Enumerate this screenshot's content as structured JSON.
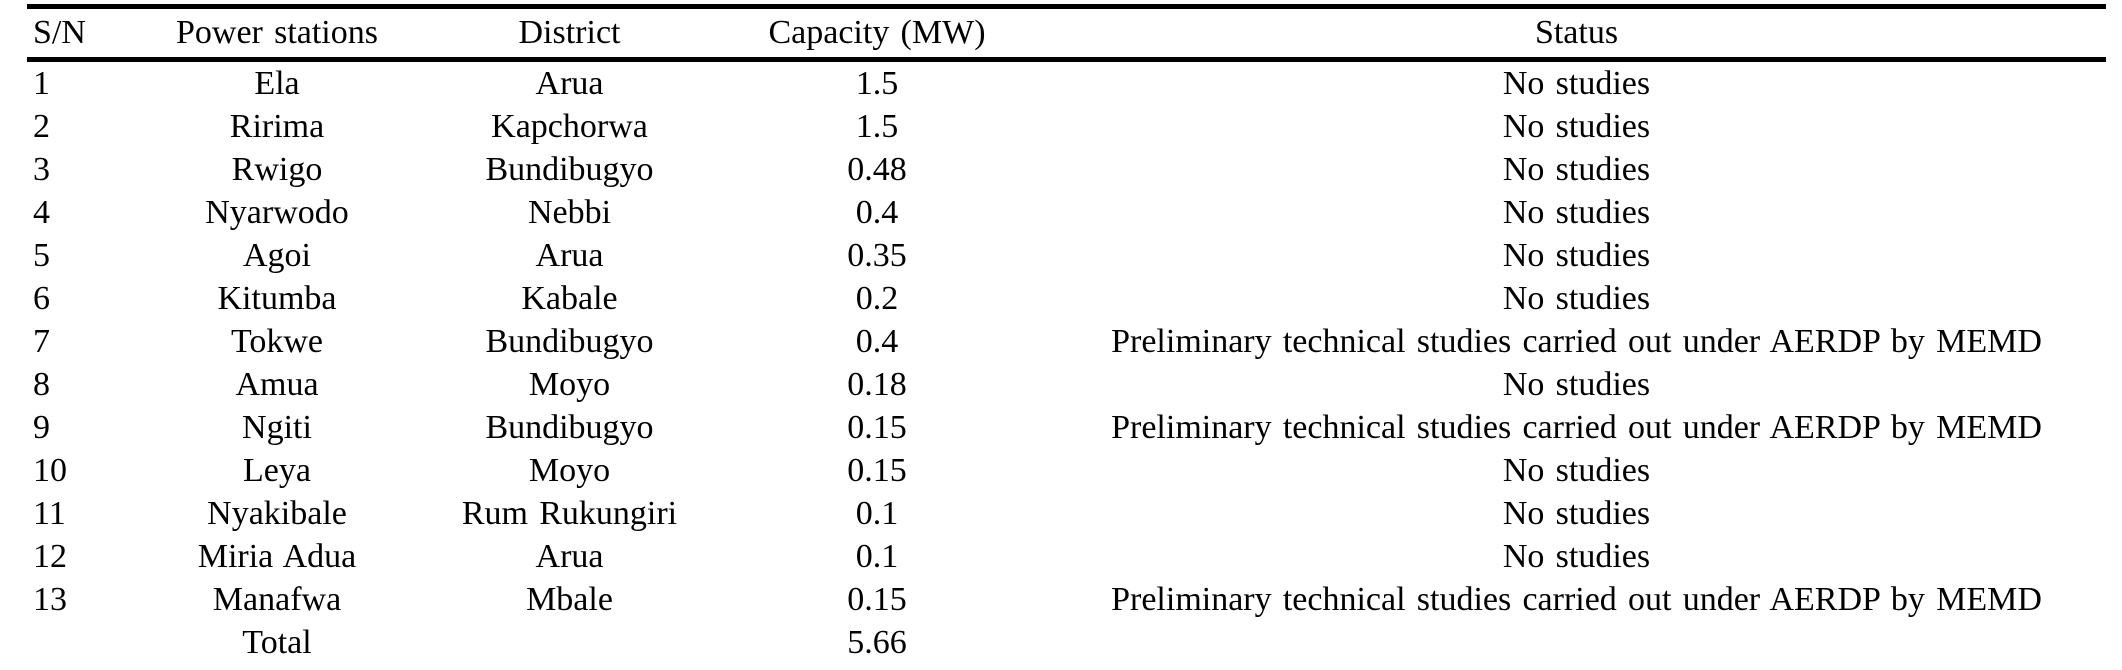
{
  "colors": {
    "background": "#ffffff",
    "text": "#000000",
    "rule": "#000000"
  },
  "table": {
    "columns": [
      {
        "key": "sn",
        "label": "S/N"
      },
      {
        "key": "station",
        "label": "Power stations"
      },
      {
        "key": "district",
        "label": "District"
      },
      {
        "key": "capacity",
        "label": "Capacity (MW)"
      },
      {
        "key": "status",
        "label": "Status"
      }
    ],
    "rows": [
      [
        "1",
        "Ela",
        "Arua",
        "1.5",
        "No studies"
      ],
      [
        "2",
        "Ririma",
        "Kapchorwa",
        "1.5",
        "No studies"
      ],
      [
        "3",
        "Rwigo",
        "Bundibugyo",
        "0.48",
        "No studies"
      ],
      [
        "4",
        "Nyarwodo",
        "Nebbi",
        "0.4",
        "No studies"
      ],
      [
        "5",
        "Agoi",
        "Arua",
        "0.35",
        "No studies"
      ],
      [
        "6",
        "Kitumba",
        "Kabale",
        "0.2",
        "No studies"
      ],
      [
        "7",
        "Tokwe",
        "Bundibugyo",
        "0.4",
        "Preliminary technical studies carried out under AERDP by MEMD"
      ],
      [
        "8",
        "Amua",
        "Moyo",
        "0.18",
        "No studies"
      ],
      [
        "9",
        "Ngiti",
        "Bundibugyo",
        "0.15",
        "Preliminary technical studies carried out under AERDP by MEMD"
      ],
      [
        "10",
        "Leya",
        "Moyo",
        "0.15",
        "No studies"
      ],
      [
        "11",
        "Nyakibale",
        "Rum Rukungiri",
        "0.1",
        "No studies"
      ],
      [
        "12",
        "Miria Adua",
        "Arua",
        "0.1",
        "No studies"
      ],
      [
        "13",
        "Manafwa",
        "Mbale",
        "0.15",
        "Preliminary technical studies carried out under AERDP by MEMD"
      ]
    ],
    "total_row": {
      "label": "Total",
      "capacity": "5.66"
    }
  }
}
